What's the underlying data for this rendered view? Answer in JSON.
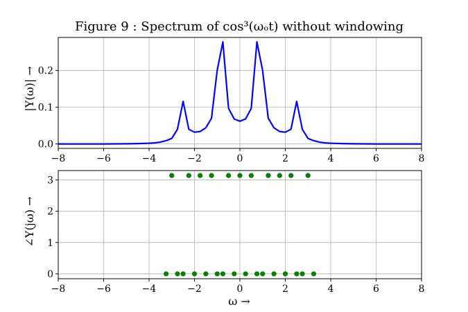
{
  "chart_data": [
    {
      "type": "line",
      "title": "Figure 9 : Spectrum of cos³(ωₒt) without windowing",
      "xlabel": "",
      "ylabel": "|Y(ω)| →",
      "xlim": [
        -8,
        8
      ],
      "ylim": [
        -0.012,
        0.29
      ],
      "xticks": [
        -8,
        -6,
        -4,
        -2,
        0,
        2,
        4,
        6,
        8
      ],
      "xtick_labels": [
        "−8",
        "−6",
        "−4",
        "−2",
        "0",
        "2",
        "4",
        "6",
        "8"
      ],
      "yticks": [
        0.0,
        0.1,
        0.2
      ],
      "ytick_labels": [
        "0.0",
        "0.1",
        "0.2"
      ],
      "grid": true,
      "series": [
        {
          "color": "#0000ff",
          "x": [
            -8.0,
            -7.0,
            -6.0,
            -5.0,
            -4.5,
            -4.0,
            -3.75,
            -3.5,
            -3.25,
            -3.0,
            -2.75,
            -2.5,
            -2.25,
            -2.0,
            -1.75,
            -1.5,
            -1.25,
            -1.0,
            -0.75,
            -0.5,
            -0.25,
            0.0,
            0.25,
            0.5,
            0.75,
            1.0,
            1.25,
            1.5,
            1.75,
            2.0,
            2.25,
            2.5,
            2.75,
            3.0,
            3.25,
            3.5,
            3.75,
            4.0,
            4.5,
            5.0,
            6.0,
            7.0,
            8.0
          ],
          "y": [
            0.0,
            0.0,
            0.0,
            0.0005,
            0.001,
            0.002,
            0.003,
            0.005,
            0.009,
            0.015,
            0.04,
            0.116,
            0.04,
            0.032,
            0.034,
            0.044,
            0.07,
            0.2,
            0.278,
            0.097,
            0.068,
            0.062,
            0.068,
            0.097,
            0.278,
            0.2,
            0.07,
            0.044,
            0.034,
            0.032,
            0.04,
            0.116,
            0.04,
            0.015,
            0.009,
            0.005,
            0.003,
            0.002,
            0.001,
            0.0005,
            0.0,
            0.0,
            0.0
          ]
        }
      ]
    },
    {
      "type": "scatter",
      "title": "",
      "xlabel": "ω →",
      "ylabel": "∠Y(jω) →",
      "xlim": [
        -8,
        8
      ],
      "ylim": [
        -0.157,
        3.3
      ],
      "xticks": [
        -8,
        -6,
        -4,
        -2,
        0,
        2,
        4,
        6,
        8
      ],
      "xtick_labels": [
        "−8",
        "−6",
        "−4",
        "−2",
        "0",
        "2",
        "4",
        "6",
        "8"
      ],
      "yticks": [
        0,
        1,
        2,
        3
      ],
      "ytick_labels": [
        "0",
        "1",
        "2",
        "3"
      ],
      "grid": true,
      "series": [
        {
          "color": "#008000",
          "x": [
            -3.0,
            -2.25,
            -1.75,
            -1.25,
            -0.5,
            0.0,
            0.5,
            1.25,
            1.75,
            2.25,
            3.0,
            -3.25,
            -2.75,
            -2.5,
            -2.0,
            -1.5,
            -1.0,
            -0.75,
            -0.25,
            0.25,
            0.75,
            1.0,
            1.5,
            2.0,
            2.5,
            2.75,
            3.25
          ],
          "y": [
            3.1416,
            3.1416,
            3.1416,
            3.1416,
            3.1416,
            3.1416,
            3.1416,
            3.1416,
            3.1416,
            3.1416,
            3.1416,
            0,
            0,
            0,
            0,
            0,
            0,
            0,
            0,
            0,
            0,
            0,
            0,
            0,
            0,
            0,
            0
          ]
        }
      ]
    }
  ]
}
